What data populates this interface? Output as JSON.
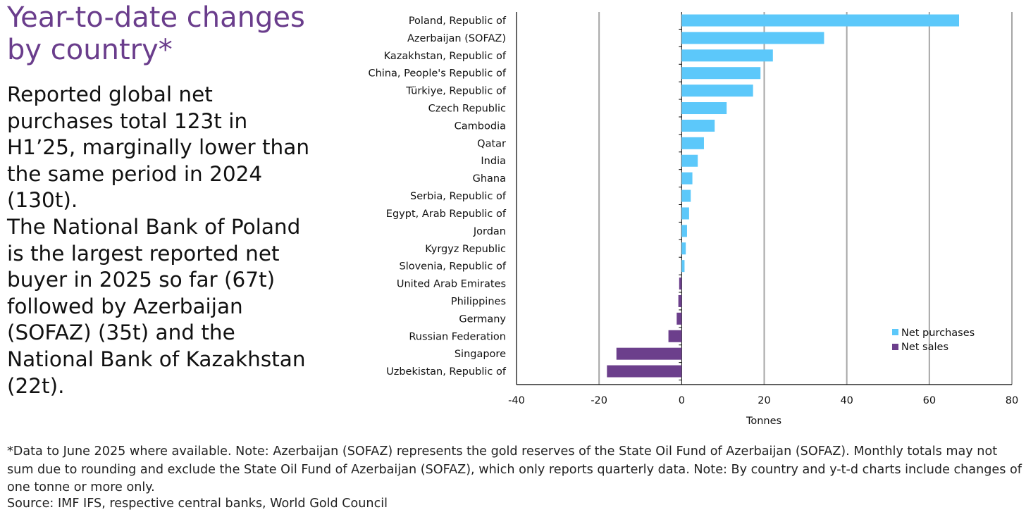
{
  "page": {
    "title": "Year-to-date changes by country*",
    "paragraph1": "Reported global net purchases total 123t in H1’25, marginally lower than the same period in 2024 (130t).",
    "paragraph2": "The National Bank of Poland is the largest reported net buyer in 2025 so far (67t) followed by Azerbaijan (SOFAZ) (35t) and the National Bank of Kazakhstan (22t).",
    "footnote": "*Data to June 2025 where available. Note: Azerbaijan (SOFAZ) represents the gold reserves of the State Oil Fund of Azerbaijan (SOFAZ). Monthly totals may not sum due to rounding and exclude the State Oil Fund of Azerbaijan (SOFAZ), which only reports quarterly data. Note: By country and y-t-d charts include changes of one tonne or more only.",
    "source": "Source: IMF IFS, respective central banks, World Gold Council"
  },
  "chart_data": {
    "type": "bar",
    "orientation": "horizontal",
    "title": "",
    "xlabel": "Tonnes",
    "ylabel": "",
    "xlim": [
      -40,
      80
    ],
    "xticks": [
      -40,
      -20,
      0,
      20,
      40,
      60,
      80
    ],
    "grid": true,
    "legend_position": "bottom-right",
    "colors": {
      "positive": "#5cc8fa",
      "negative": "#6c3f8c",
      "grid": "#a6a6a6",
      "axis": "#000000"
    },
    "series": [
      {
        "name": "Net purchases",
        "color": "#5cc8fa"
      },
      {
        "name": "Net sales",
        "color": "#6c3f8c"
      }
    ],
    "categories": [
      "Poland, Republic of",
      "Azerbaijan (SOFAZ)",
      "Kazakhstan, Republic of",
      "China, People's Republic of",
      "Türkiye, Republic of",
      "Czech Republic",
      "Cambodia",
      "Qatar",
      "India",
      "Ghana",
      "Serbia, Republic of",
      "Egypt, Arab Republic of",
      "Jordan",
      "Kyrgyz Republic",
      "Slovenia, Republic of",
      "United Arab Emirates",
      "Philippines",
      "Germany",
      "Russian Federation",
      "Singapore",
      "Uzbekistan, Republic of"
    ],
    "values": [
      67.2,
      34.5,
      22.1,
      19.1,
      17.3,
      10.9,
      8.0,
      5.4,
      3.9,
      2.6,
      2.2,
      1.8,
      1.3,
      1.0,
      0.7,
      -0.6,
      -0.8,
      -1.2,
      -3.2,
      -15.8,
      -18.1
    ]
  }
}
